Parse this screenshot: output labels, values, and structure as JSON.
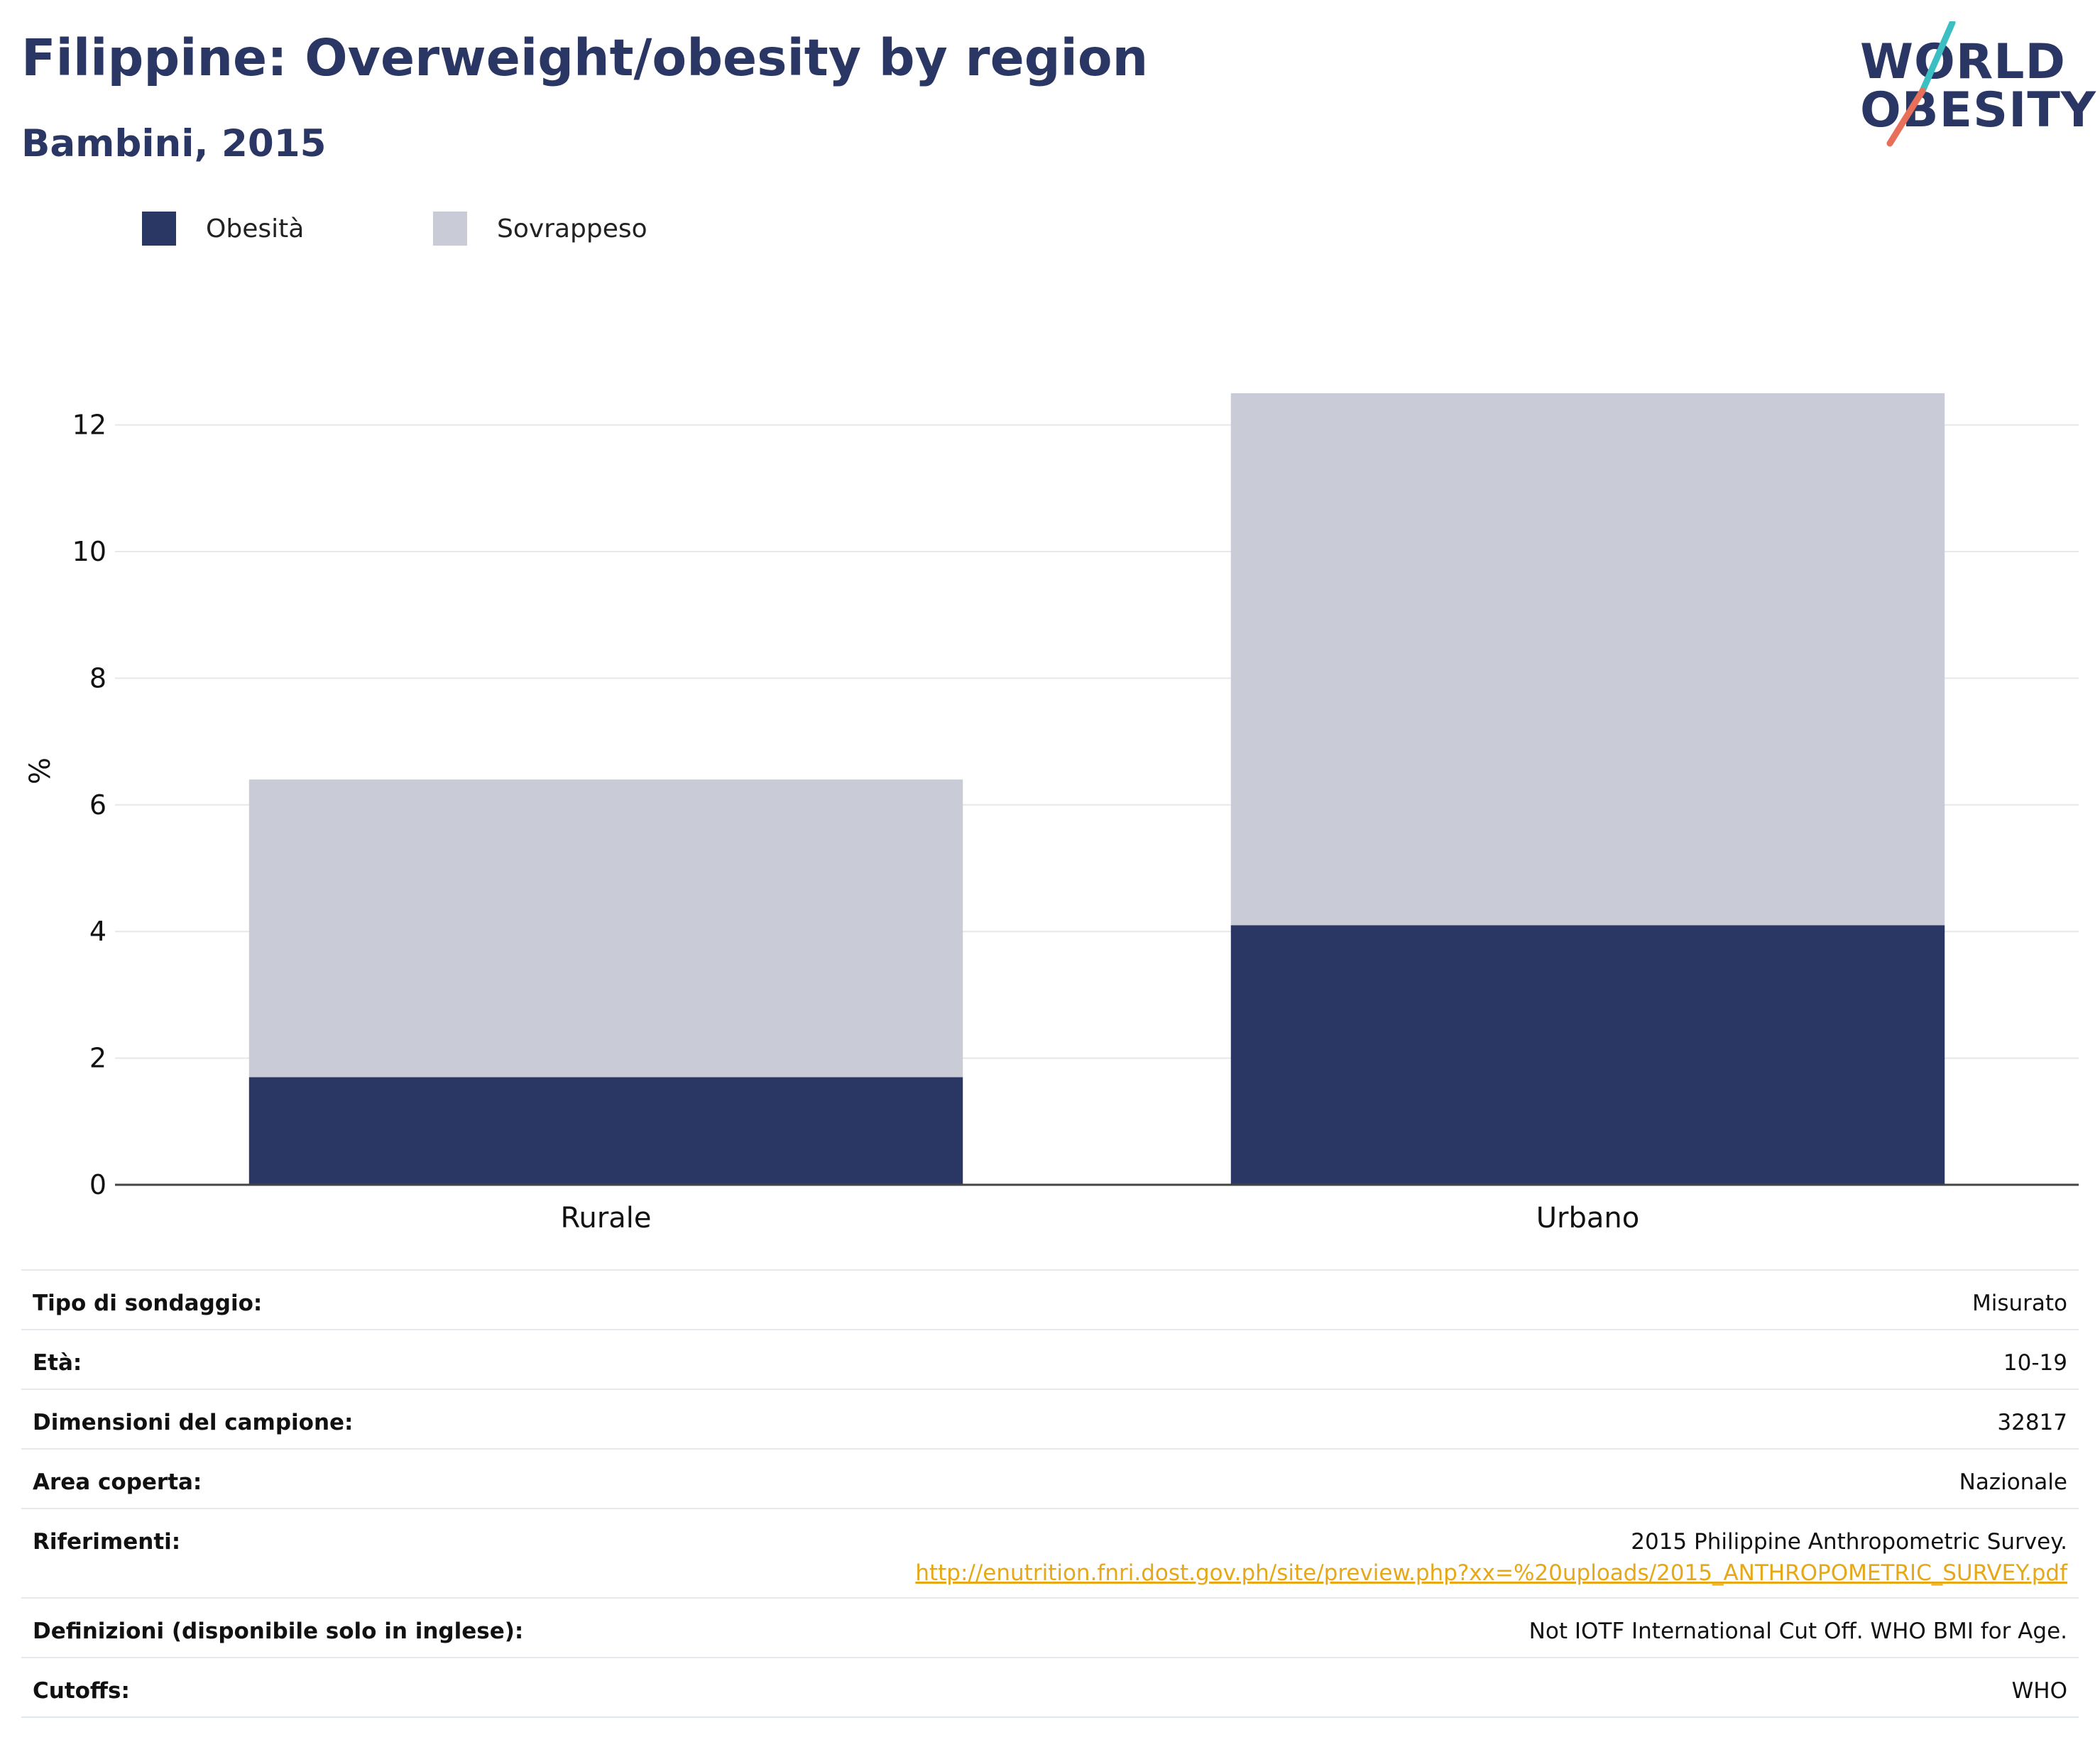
{
  "header": {
    "title": "Filippine: Overweight/obesity by region",
    "subtitle": "Bambini, 2015"
  },
  "logo": {
    "line1": "WORLD",
    "line2": "OBESITY",
    "colors": {
      "text": "#2a3663",
      "slash_top": "#3bbfc2",
      "slash_bottom": "#e8705a"
    }
  },
  "legend": {
    "items": [
      {
        "label": "Obesità",
        "color": "#2a3663"
      },
      {
        "label": "Sovrappeso",
        "color": "#c9cbd6"
      }
    ]
  },
  "chart_data": {
    "type": "bar",
    "stacked": true,
    "categories": [
      "Rurale",
      "Urbano"
    ],
    "series": [
      {
        "name": "Obesità",
        "color": "#2a3663",
        "values": [
          1.7,
          4.1
        ]
      },
      {
        "name": "Sovrappeso",
        "color": "#c9cbd6",
        "values": [
          4.7,
          8.4
        ]
      }
    ],
    "ylabel": "%",
    "ylim": [
      0,
      13
    ],
    "yticks": [
      0,
      2,
      4,
      6,
      8,
      10,
      12
    ],
    "grid": true,
    "legend_position": "top-left"
  },
  "info": {
    "rows": [
      {
        "key": "Tipo di sondaggio:",
        "value": "Misurato"
      },
      {
        "key": "Età:",
        "value": "10-19"
      },
      {
        "key": "Dimensioni del campione:",
        "value": "32817"
      },
      {
        "key": "Area coperta:",
        "value": "Nazionale"
      },
      {
        "key": "Riferimenti:",
        "value": "2015 Philippine Anthropometric Survey.",
        "link": "http://enutrition.fnri.dost.gov.ph/site/preview.php?xx=%20uploads/2015_ANTHROPOMETRIC_SURVEY.pdf"
      },
      {
        "key": "Definizioni (disponibile solo in inglese):",
        "value": "Not IOTF International Cut Off. WHO BMI for Age."
      },
      {
        "key": "Cutoffs:",
        "value": "WHO"
      }
    ]
  }
}
